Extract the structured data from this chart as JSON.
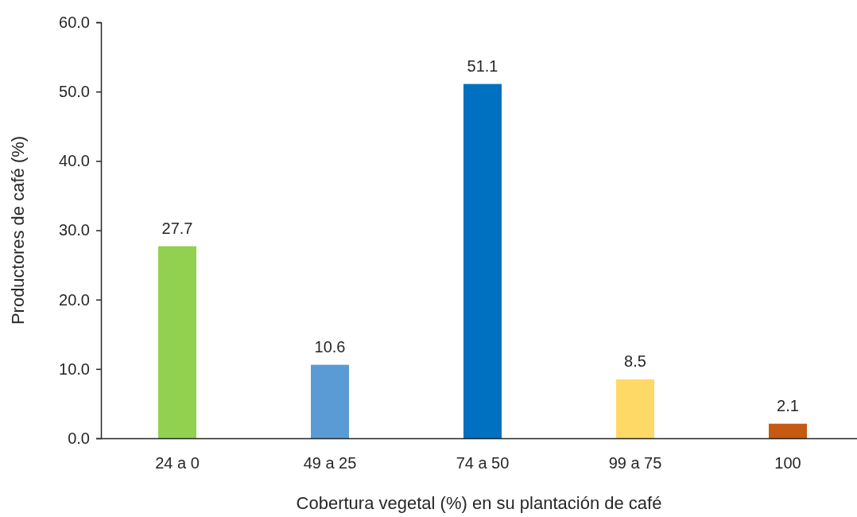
{
  "chart_data": {
    "type": "bar",
    "xlabel": "Cobertura vegetal (%) en su plantación de café",
    "ylabel": "Productores de café (%)",
    "categories": [
      "24 a 0",
      "49 a 25",
      "74 a 50",
      "99 a 75",
      "100"
    ],
    "values": [
      27.7,
      10.6,
      51.1,
      8.5,
      2.1
    ],
    "colors": [
      "#92d050",
      "#5b9bd5",
      "#0070c0",
      "#ffd966",
      "#c55a11"
    ],
    "ylim": [
      0,
      60
    ],
    "yticks": [
      {
        "value": 0,
        "label": "0.0"
      },
      {
        "value": 10,
        "label": "10.0"
      },
      {
        "value": 20,
        "label": "20.0"
      },
      {
        "value": 30,
        "label": "30.0"
      },
      {
        "value": 40,
        "label": "40.0"
      },
      {
        "value": 50,
        "label": "50.0"
      },
      {
        "value": 60,
        "label": "60.0"
      }
    ],
    "data_labels": true,
    "grid": false
  }
}
